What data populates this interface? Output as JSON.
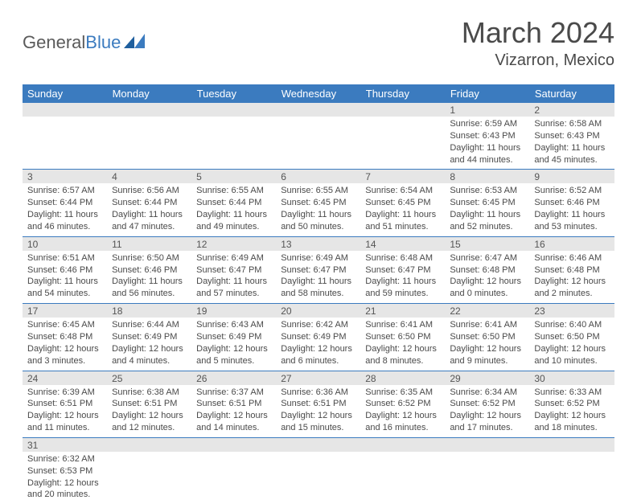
{
  "logo": {
    "part1": "General",
    "part2": "Blue"
  },
  "title": "March 2024",
  "location": "Vizarron, Mexico",
  "colors": {
    "header_bg": "#3b7bbf",
    "header_text": "#ffffff",
    "daynum_bg": "#e6e6e6",
    "text": "#4a4a4a",
    "rule": "#3b7bbf"
  },
  "weekdays": [
    "Sunday",
    "Monday",
    "Tuesday",
    "Wednesday",
    "Thursday",
    "Friday",
    "Saturday"
  ],
  "weeks": [
    [
      null,
      null,
      null,
      null,
      null,
      {
        "n": "1",
        "sunrise": "6:59 AM",
        "sunset": "6:43 PM",
        "daylight": "11 hours and 44 minutes."
      },
      {
        "n": "2",
        "sunrise": "6:58 AM",
        "sunset": "6:43 PM",
        "daylight": "11 hours and 45 minutes."
      }
    ],
    [
      {
        "n": "3",
        "sunrise": "6:57 AM",
        "sunset": "6:44 PM",
        "daylight": "11 hours and 46 minutes."
      },
      {
        "n": "4",
        "sunrise": "6:56 AM",
        "sunset": "6:44 PM",
        "daylight": "11 hours and 47 minutes."
      },
      {
        "n": "5",
        "sunrise": "6:55 AM",
        "sunset": "6:44 PM",
        "daylight": "11 hours and 49 minutes."
      },
      {
        "n": "6",
        "sunrise": "6:55 AM",
        "sunset": "6:45 PM",
        "daylight": "11 hours and 50 minutes."
      },
      {
        "n": "7",
        "sunrise": "6:54 AM",
        "sunset": "6:45 PM",
        "daylight": "11 hours and 51 minutes."
      },
      {
        "n": "8",
        "sunrise": "6:53 AM",
        "sunset": "6:45 PM",
        "daylight": "11 hours and 52 minutes."
      },
      {
        "n": "9",
        "sunrise": "6:52 AM",
        "sunset": "6:46 PM",
        "daylight": "11 hours and 53 minutes."
      }
    ],
    [
      {
        "n": "10",
        "sunrise": "6:51 AM",
        "sunset": "6:46 PM",
        "daylight": "11 hours and 54 minutes."
      },
      {
        "n": "11",
        "sunrise": "6:50 AM",
        "sunset": "6:46 PM",
        "daylight": "11 hours and 56 minutes."
      },
      {
        "n": "12",
        "sunrise": "6:49 AM",
        "sunset": "6:47 PM",
        "daylight": "11 hours and 57 minutes."
      },
      {
        "n": "13",
        "sunrise": "6:49 AM",
        "sunset": "6:47 PM",
        "daylight": "11 hours and 58 minutes."
      },
      {
        "n": "14",
        "sunrise": "6:48 AM",
        "sunset": "6:47 PM",
        "daylight": "11 hours and 59 minutes."
      },
      {
        "n": "15",
        "sunrise": "6:47 AM",
        "sunset": "6:48 PM",
        "daylight": "12 hours and 0 minutes."
      },
      {
        "n": "16",
        "sunrise": "6:46 AM",
        "sunset": "6:48 PM",
        "daylight": "12 hours and 2 minutes."
      }
    ],
    [
      {
        "n": "17",
        "sunrise": "6:45 AM",
        "sunset": "6:48 PM",
        "daylight": "12 hours and 3 minutes."
      },
      {
        "n": "18",
        "sunrise": "6:44 AM",
        "sunset": "6:49 PM",
        "daylight": "12 hours and 4 minutes."
      },
      {
        "n": "19",
        "sunrise": "6:43 AM",
        "sunset": "6:49 PM",
        "daylight": "12 hours and 5 minutes."
      },
      {
        "n": "20",
        "sunrise": "6:42 AM",
        "sunset": "6:49 PM",
        "daylight": "12 hours and 6 minutes."
      },
      {
        "n": "21",
        "sunrise": "6:41 AM",
        "sunset": "6:50 PM",
        "daylight": "12 hours and 8 minutes."
      },
      {
        "n": "22",
        "sunrise": "6:41 AM",
        "sunset": "6:50 PM",
        "daylight": "12 hours and 9 minutes."
      },
      {
        "n": "23",
        "sunrise": "6:40 AM",
        "sunset": "6:50 PM",
        "daylight": "12 hours and 10 minutes."
      }
    ],
    [
      {
        "n": "24",
        "sunrise": "6:39 AM",
        "sunset": "6:51 PM",
        "daylight": "12 hours and 11 minutes."
      },
      {
        "n": "25",
        "sunrise": "6:38 AM",
        "sunset": "6:51 PM",
        "daylight": "12 hours and 12 minutes."
      },
      {
        "n": "26",
        "sunrise": "6:37 AM",
        "sunset": "6:51 PM",
        "daylight": "12 hours and 14 minutes."
      },
      {
        "n": "27",
        "sunrise": "6:36 AM",
        "sunset": "6:51 PM",
        "daylight": "12 hours and 15 minutes."
      },
      {
        "n": "28",
        "sunrise": "6:35 AM",
        "sunset": "6:52 PM",
        "daylight": "12 hours and 16 minutes."
      },
      {
        "n": "29",
        "sunrise": "6:34 AM",
        "sunset": "6:52 PM",
        "daylight": "12 hours and 17 minutes."
      },
      {
        "n": "30",
        "sunrise": "6:33 AM",
        "sunset": "6:52 PM",
        "daylight": "12 hours and 18 minutes."
      }
    ],
    [
      {
        "n": "31",
        "sunrise": "6:32 AM",
        "sunset": "6:53 PM",
        "daylight": "12 hours and 20 minutes."
      },
      null,
      null,
      null,
      null,
      null,
      null
    ]
  ],
  "labels": {
    "sunrise": "Sunrise:",
    "sunset": "Sunset:",
    "daylight": "Daylight:"
  }
}
